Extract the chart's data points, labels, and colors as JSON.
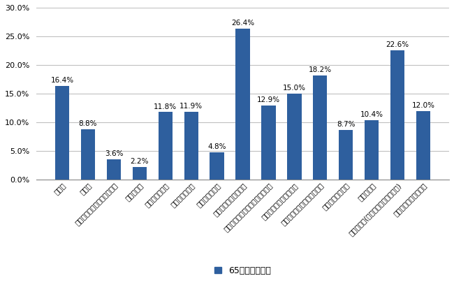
{
  "categories": [
    "建設業",
    "製造業",
    "電気・ガス・熱供給・水道業",
    "情報通信業",
    "運輸業、郵便業",
    "卸売業、小売業",
    "金融業、保険業",
    "不動産業、物品賊貸業",
    "学術研究、専門・技術サービス業",
    "宿泊業、飲食サービス業",
    "生活関連サービス業、娯楽業",
    "教育、学習支援業",
    "医療、福祉",
    "サービス業(他に分類されないもの)",
    "全産業計（非農林業）"
  ],
  "values": [
    16.4,
    8.8,
    3.6,
    2.2,
    11.8,
    11.9,
    4.8,
    26.4,
    12.9,
    15.0,
    18.2,
    8.7,
    10.4,
    22.6,
    12.0
  ],
  "bar_color": "#2E5F9E",
  "ylim": [
    0,
    30
  ],
  "yticks": [
    0,
    5,
    10,
    15,
    20,
    25,
    30
  ],
  "legend_label": "65歳以上の割合",
  "background_color": "#ffffff",
  "grid_color": "#c0c0c0",
  "value_fontsize": 7.5,
  "tick_fontsize": 8.0,
  "label_fontsize": 7.5
}
